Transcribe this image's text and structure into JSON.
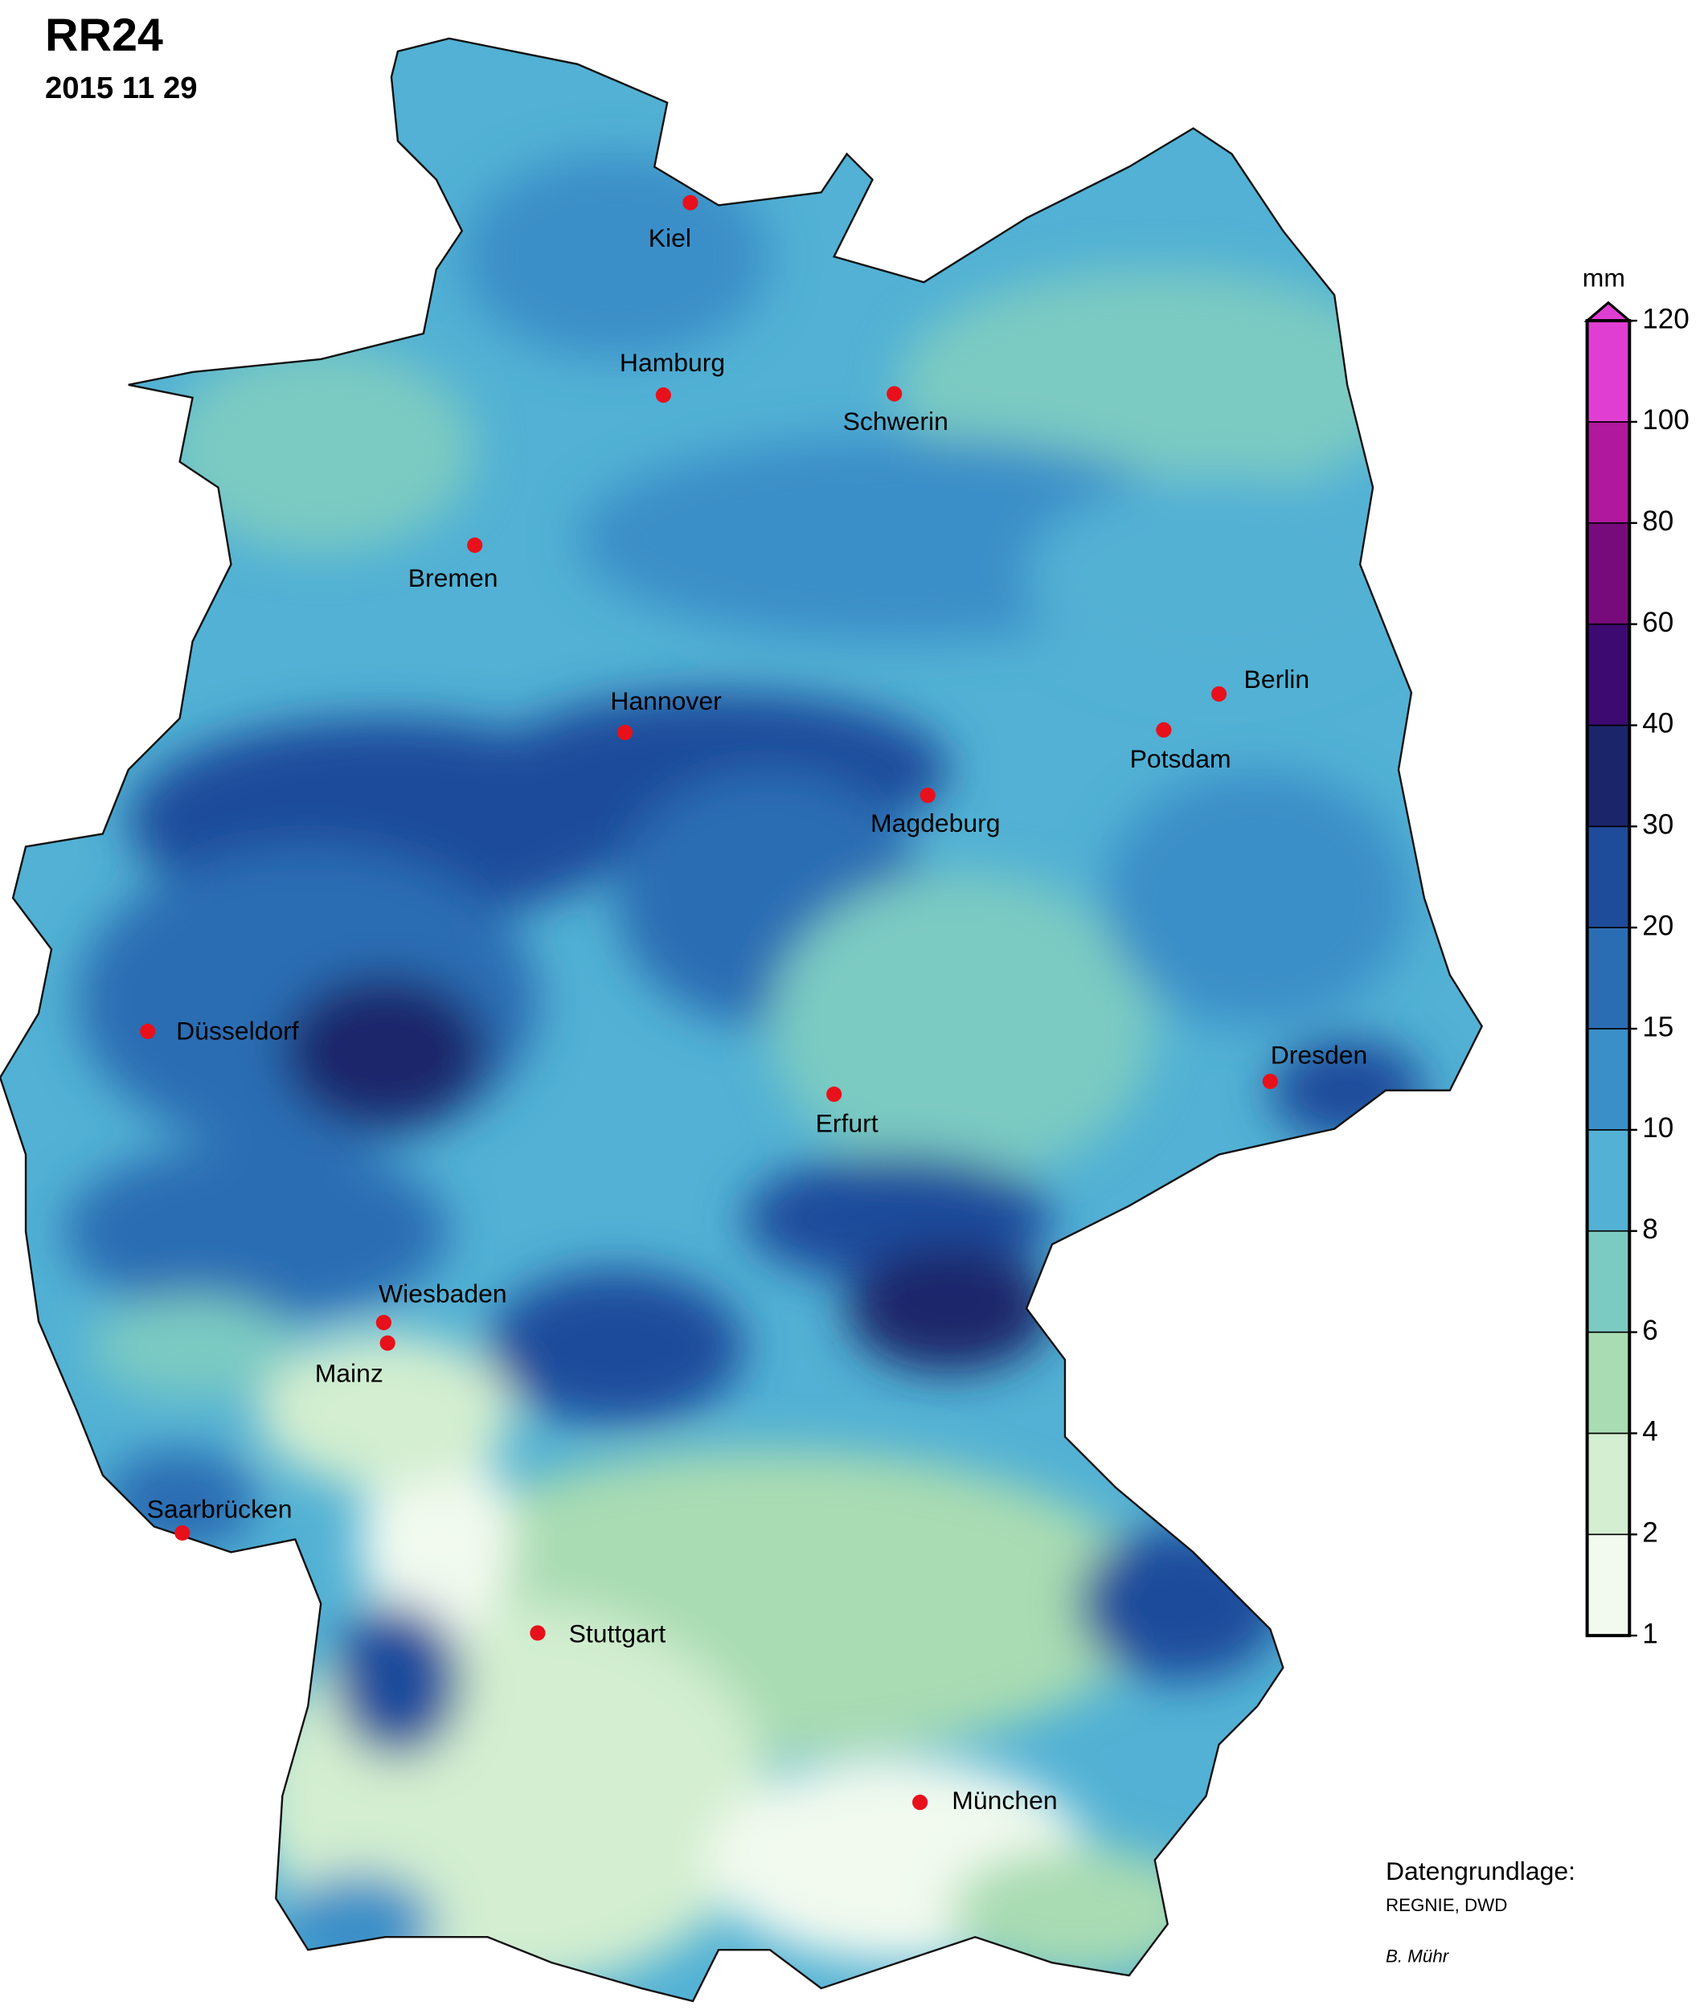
{
  "header": {
    "title": "RR24",
    "date": "2015 11 29"
  },
  "legend": {
    "unit": "mm",
    "ticks": [
      1,
      2,
      4,
      6,
      8,
      10,
      15,
      20,
      30,
      40,
      60,
      80,
      100,
      120
    ],
    "colors": [
      "#f2faef",
      "#d3eed0",
      "#a9dcb2",
      "#7ccbc2",
      "#52b1d4",
      "#3a8fc8",
      "#2b6db3",
      "#1f4b9b",
      "#1b266a",
      "#3c0a70",
      "#780b7c",
      "#b0189e",
      "#e03ed2"
    ]
  },
  "cities": [
    "Kiel",
    "Hamburg",
    "Schwerin",
    "Bremen",
    "Hannover",
    "Berlin",
    "Potsdam",
    "Magdeburg",
    "Düsseldorf",
    "Dresden",
    "Erfurt",
    "Wiesbaden",
    "Mainz",
    "Saarbrücken",
    "Stuttgart",
    "München"
  ],
  "credits": {
    "source_label": "Datengrundlage:",
    "source": "REGNIE, DWD",
    "author": "B. Mühr"
  }
}
